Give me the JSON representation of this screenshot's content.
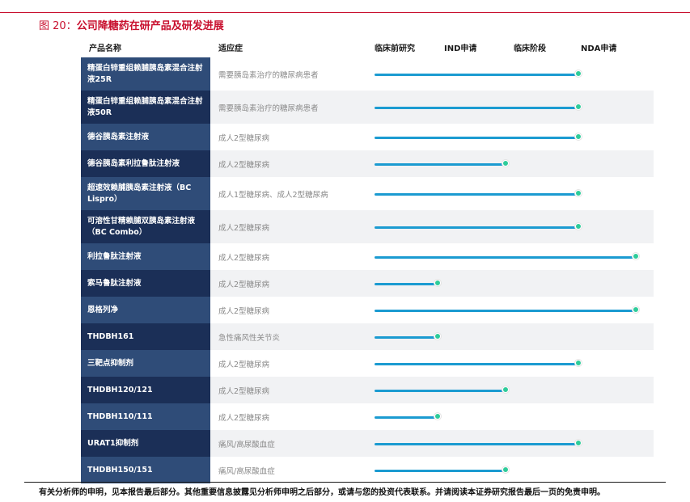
{
  "figure": {
    "number": "图 20：",
    "title": "公司降糖药在研产品及研发进展"
  },
  "headers": {
    "product": "产品名称",
    "indication": "适应症",
    "preclinical": "临床前研究",
    "ind": "IND申请",
    "clinical": "临床阶段",
    "nda": "NDA申请"
  },
  "stage_scale": [
    "临床前研究",
    "IND申请",
    "临床阶段",
    "NDA申请"
  ],
  "rows": [
    {
      "name": "精蛋白锌重组赖脯胰岛素混合注射液25R",
      "indication": "需要胰岛素治疗的糖尿病患者",
      "progress": 0.78
    },
    {
      "name": "精蛋白锌重组赖脯胰岛素混合注射液50R",
      "indication": "需要胰岛素治疗的糖尿病患者",
      "progress": 0.78
    },
    {
      "name": "德谷胰岛素注射液",
      "indication": "成人2型糖尿病",
      "progress": 0.78
    },
    {
      "name": "德谷胰岛素利拉鲁肽注射液",
      "indication": "成人2型糖尿病",
      "progress": 0.5
    },
    {
      "name": "超速效赖脯胰岛素注射液（BC Lispro）",
      "indication": "成人1型糖尿病、成人2型糖尿病",
      "progress": 0.78
    },
    {
      "name": "可溶性甘精赖脯双胰岛素注射液（BC Combo）",
      "indication": "成人2型糖尿病",
      "progress": 0.78
    },
    {
      "name": "利拉鲁肽注射液",
      "indication": "成人2型糖尿病",
      "progress": 1.0
    },
    {
      "name": "索马鲁肽注射液",
      "indication": "成人2型糖尿病",
      "progress": 0.24
    },
    {
      "name": "恩格列净",
      "indication": "成人2型糖尿病",
      "progress": 1.0
    },
    {
      "name": "THDBH161",
      "indication": "急性痛风性关节炎",
      "progress": 0.24
    },
    {
      "name": "三靶点抑制剂",
      "indication": "成人2型糖尿病",
      "progress": 0.78
    },
    {
      "name": "THDBH120/121",
      "indication": "成人2型糖尿病",
      "progress": 0.5
    },
    {
      "name": "THDBH110/111",
      "indication": "成人2型糖尿病",
      "progress": 0.24
    },
    {
      "name": "URAT1抑制剂",
      "indication": "痛风/高尿酸血症",
      "progress": 0.78
    },
    {
      "name": "THDBH150/151",
      "indication": "痛风/高尿酸血症",
      "progress": 0.5
    }
  ],
  "colors": {
    "accent": "#c8102e",
    "bar": "#1b9bd1",
    "dot": "#2ecc9a",
    "name_bg_1": "#2f4c78",
    "name_bg_2": "#1b2f57"
  },
  "disclaimer": "有关分析师的申明，见本报告最后部分。其他重要信息披露见分析师申明之后部分，或请与您的投资代表联系。并请阅读本证券研究报告最后一页的免责申明。"
}
